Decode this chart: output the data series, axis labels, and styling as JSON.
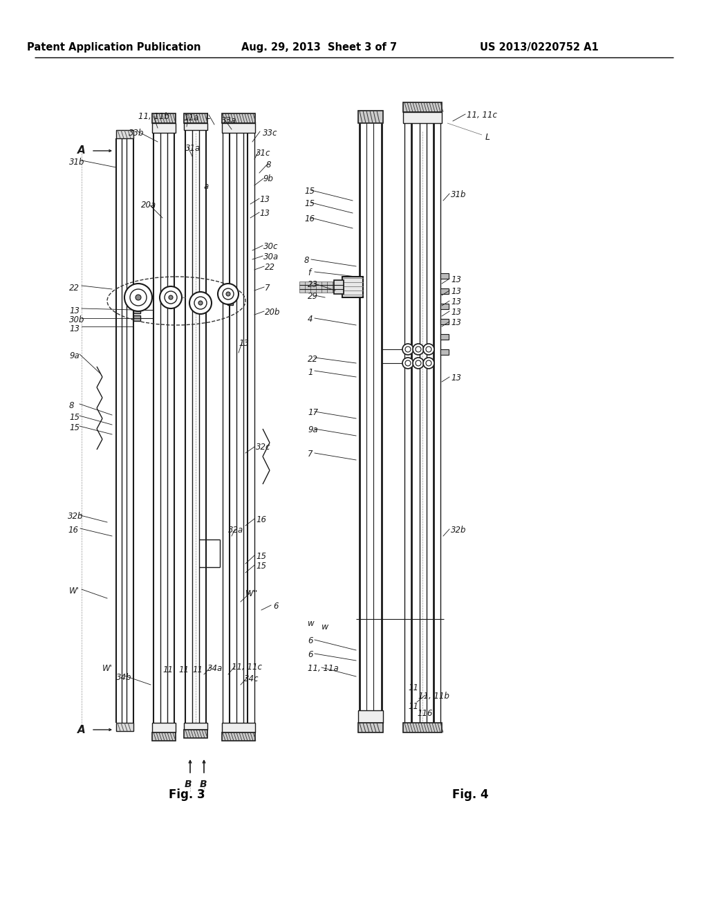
{
  "bg_color": "#f5f5f0",
  "header_text_left": "Patent Application Publication",
  "header_text_mid": "Aug. 29, 2013  Sheet 3 of 7",
  "header_text_right": "US 2013/0220752 A1",
  "fig3_label": "Fig. 3",
  "fig4_label": "Fig. 4",
  "title_fontsize": 10.5,
  "label_fontsize": 8.5,
  "fig_width": 10.24,
  "fig_height": 13.2
}
